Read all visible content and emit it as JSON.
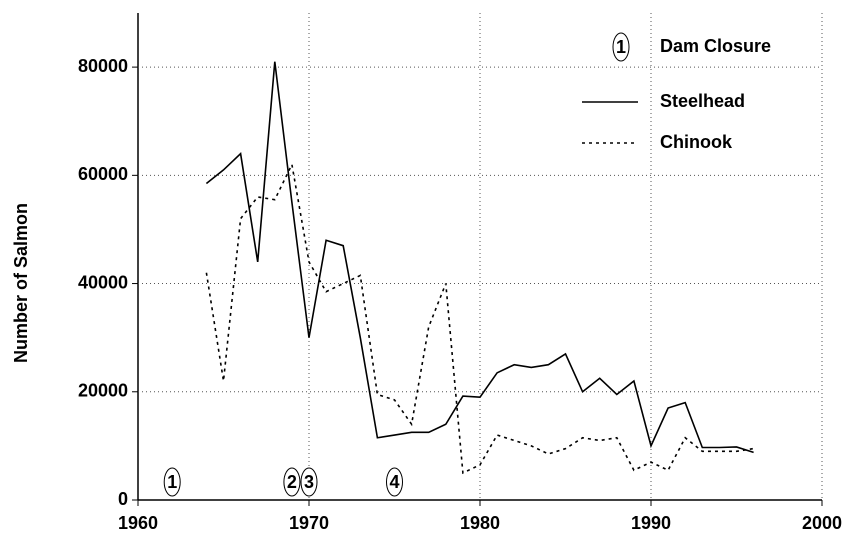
{
  "chart_data": {
    "type": "line",
    "y_label": "Number of Salmon",
    "x": [
      1964,
      1965,
      1966,
      1967,
      1968,
      1969,
      1970,
      1971,
      1972,
      1973,
      1974,
      1975,
      1976,
      1977,
      1978,
      1979,
      1980,
      1981,
      1982,
      1983,
      1984,
      1985,
      1986,
      1987,
      1988,
      1989,
      1990,
      1991,
      1992,
      1993,
      1994,
      1995,
      1996
    ],
    "series": [
      {
        "name": "Steelhead",
        "color": "#000000",
        "dash": "solid",
        "values": [
          58500,
          61000,
          64000,
          44000,
          81000,
          55000,
          30000,
          48000,
          47000,
          30000,
          11500,
          12000,
          12500,
          12500,
          14000,
          19200,
          19000,
          23500,
          25000,
          24500,
          25000,
          27000,
          20000,
          22500,
          19500,
          22000,
          10000,
          17000,
          18000,
          9700,
          9700,
          9800,
          8800
        ]
      },
      {
        "name": "Chinook",
        "color": "#000000",
        "dash": "dotted",
        "values": [
          42000,
          22000,
          52000,
          56000,
          55500,
          62000,
          44000,
          38500,
          40000,
          41500,
          19500,
          18500,
          14000,
          32000,
          40000,
          5000,
          6500,
          12000,
          11000,
          10000,
          8500,
          9500,
          11500,
          11000,
          11500,
          5500,
          7000,
          5500,
          11500,
          9000,
          9000,
          9000,
          9500
        ]
      }
    ],
    "annotations": [
      {
        "label": "1",
        "x": 1962
      },
      {
        "label": "2",
        "x": 1969
      },
      {
        "label": "3",
        "x": 1970
      },
      {
        "label": "4",
        "x": 1975
      }
    ],
    "annotation_legend": "Dam Closure",
    "xlim": [
      1960,
      2000
    ],
    "xticks": [
      1960,
      1970,
      1980,
      1990,
      2000
    ],
    "ylim": [
      0,
      90000
    ],
    "yticks": [
      0,
      20000,
      40000,
      60000,
      80000
    ],
    "grid": true
  }
}
